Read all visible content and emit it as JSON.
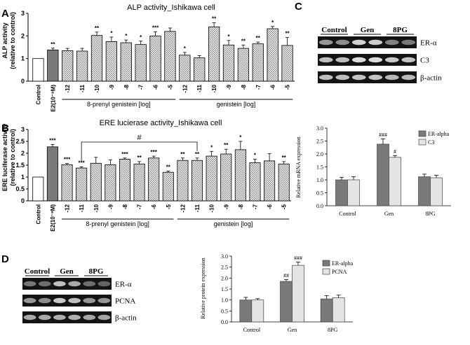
{
  "panels": {
    "A": "A",
    "B": "B",
    "C": "C",
    "D": "D"
  },
  "colors": {
    "black": "#000000",
    "bar_white": "#ffffff",
    "bar_gray": "#7a7a7a",
    "bar_hatch": "#8a8a8a",
    "bar_lightgray": "#dcdcdc",
    "blot_bg": "#141414",
    "band": "#bdbdbd"
  },
  "chart_data": [
    {
      "id": "A",
      "type": "bar",
      "title": "ALP activity_Ishikawa cell",
      "ylabel_line1": "ALP activity",
      "ylabel_line2": "(relative to control)",
      "ylim": [
        0,
        3
      ],
      "yticks": [
        "0",
        "1",
        "2",
        "3"
      ],
      "categories": [
        "Control",
        "E2(10⁻⁸M)",
        "-12",
        "-11",
        "-10",
        "-9",
        "-8",
        "-7",
        "-6",
        "-5",
        "-12",
        "-11",
        "-10",
        "-9",
        "-8",
        "-7",
        "-6",
        "-5"
      ],
      "styles": [
        "white",
        "gray",
        "hatch",
        "hatch",
        "hatch",
        "hatch",
        "hatch",
        "hatch",
        "hatch",
        "hatch",
        "hatch",
        "hatch",
        "hatch",
        "hatch",
        "hatch",
        "hatch",
        "hatch",
        "hatch"
      ],
      "values": [
        1.0,
        1.38,
        1.35,
        1.33,
        2.02,
        1.75,
        1.7,
        1.62,
        2.0,
        2.2,
        1.15,
        1.03,
        2.4,
        1.6,
        1.45,
        1.65,
        2.32,
        1.58
      ],
      "errors": [
        0.0,
        0.08,
        0.1,
        0.12,
        0.15,
        0.2,
        0.12,
        0.15,
        0.18,
        0.15,
        0.12,
        0.1,
        0.18,
        0.2,
        0.15,
        0.08,
        0.1,
        0.35
      ],
      "marks": [
        "",
        "**",
        "",
        "",
        "**",
        "*",
        "*",
        "*",
        "***",
        "",
        "*",
        "",
        "**",
        "*",
        "**",
        "**",
        "*",
        "**"
      ],
      "groups": [
        {
          "label": "8-prenyl genistein [log]",
          "from": 2,
          "to": 9
        },
        {
          "label": "genistein [log]",
          "from": 10,
          "to": 17
        }
      ]
    },
    {
      "id": "B",
      "type": "bar",
      "title": "ERE lucierase activity_Ishikawa cell",
      "ylabel_line1": "ERE luciferase activity",
      "ylabel_line2": "(relative to control)",
      "ylim": [
        0,
        3
      ],
      "yticks": [
        "0",
        "0.5",
        "1",
        "1.5",
        "2",
        "2.5",
        "3"
      ],
      "categories": [
        "Control",
        "E2(10⁻⁸M)",
        "-12",
        "-11",
        "-10",
        "-9",
        "-8",
        "-7",
        "-6",
        "-5",
        "-12",
        "-11",
        "-10",
        "-9",
        "-8",
        "-7",
        "-6",
        "-5"
      ],
      "styles": [
        "white",
        "gray",
        "hatch",
        "hatch",
        "hatch",
        "hatch",
        "hatch",
        "hatch",
        "hatch",
        "hatch",
        "hatch",
        "hatch",
        "hatch",
        "hatch",
        "hatch",
        "hatch",
        "hatch",
        "hatch"
      ],
      "values": [
        1.0,
        2.27,
        1.52,
        1.38,
        1.58,
        1.52,
        1.75,
        1.55,
        1.8,
        1.2,
        1.7,
        1.7,
        1.88,
        1.97,
        2.15,
        1.6,
        1.68,
        1.55
      ],
      "errors": [
        0.0,
        0.1,
        0.05,
        0.05,
        0.25,
        0.2,
        0.05,
        0.1,
        0.08,
        0.05,
        0.1,
        0.1,
        0.2,
        0.2,
        0.35,
        0.15,
        0.3,
        0.1
      ],
      "marks": [
        "",
        "***",
        "***",
        "***",
        "",
        "",
        "***",
        "**",
        "***",
        "**",
        "**",
        "**",
        "*",
        "**",
        "*",
        "*",
        "",
        "**"
      ],
      "bracket": {
        "from": 3,
        "to": 11,
        "label": "#"
      },
      "groups": [
        {
          "label": "8-prenyl genistein [log]",
          "from": 2,
          "to": 9
        },
        {
          "label": "genistein [log]",
          "from": 10,
          "to": 17
        }
      ]
    },
    {
      "id": "B-right",
      "type": "bar",
      "ylabel": "Relative mRNA expression",
      "ylim": [
        0,
        3.0
      ],
      "yticks": [
        "0.0",
        "0.5",
        "1.0",
        "1.5",
        "2.0",
        "2.5",
        "3.0"
      ],
      "categories": [
        "Control",
        "Gen",
        "8PG"
      ],
      "series": [
        {
          "name": "ER-alpha",
          "values": [
            1.0,
            2.38,
            1.12
          ],
          "errors": [
            0.1,
            0.2,
            0.1
          ],
          "marks": [
            "",
            "###",
            ""
          ]
        },
        {
          "name": "C3",
          "values": [
            1.0,
            1.87,
            1.08
          ],
          "errors": [
            0.12,
            0.07,
            0.1
          ],
          "marks": [
            "",
            "#",
            ""
          ]
        }
      ]
    },
    {
      "id": "D-right",
      "type": "bar",
      "ylabel": "Relative protein expression",
      "ylim": [
        0,
        3.0
      ],
      "yticks": [
        "0.0",
        "0.5",
        "1.0",
        "1.5",
        "2.0",
        "2.5",
        "3.0"
      ],
      "categories": [
        "Control",
        "Gen",
        "8PG"
      ],
      "series": [
        {
          "name": "ER-alpha",
          "values": [
            1.0,
            1.85,
            1.05
          ],
          "errors": [
            0.12,
            0.08,
            0.15
          ],
          "marks": [
            "",
            "##",
            ""
          ]
        },
        {
          "name": "PCNA",
          "values": [
            1.0,
            2.58,
            1.1
          ],
          "errors": [
            0.06,
            0.15,
            0.12
          ],
          "marks": [
            "",
            "###",
            ""
          ]
        }
      ]
    }
  ],
  "blots": {
    "C": {
      "groups": [
        "Control",
        "Gen",
        "8PG"
      ],
      "rows": [
        "ER-α",
        "C3",
        "β-actin"
      ]
    },
    "D": {
      "groups": [
        "Control",
        "Gen",
        "8PG"
      ],
      "rows": [
        "ER-α",
        "PCNA",
        "β-actin"
      ]
    }
  }
}
